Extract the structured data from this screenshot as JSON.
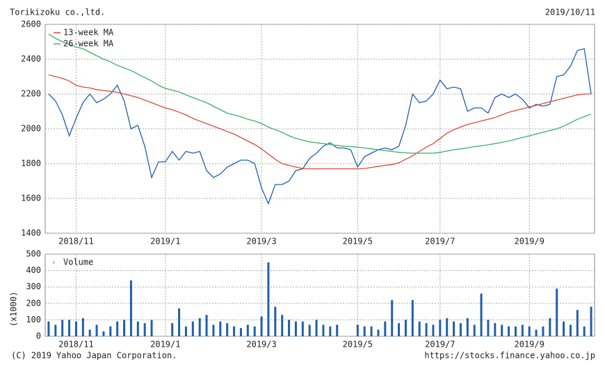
{
  "header": {
    "title": "Torikizoku co.,ltd.",
    "date": "2019/10/11"
  },
  "footer": {
    "copyright": "(C) 2019 Yahoo Japan Corporation.",
    "url": "https://stocks.finance.yahoo.co.jp"
  },
  "chart_data": [
    {
      "type": "line",
      "categories": [
        null,
        null,
        null,
        null,
        "2018/11",
        null,
        null,
        null,
        null,
        null,
        null,
        null,
        null,
        null,
        null,
        null,
        null,
        "2019/1",
        null,
        null,
        null,
        null,
        null,
        null,
        null,
        null,
        null,
        null,
        null,
        null,
        null,
        "2019/3",
        null,
        null,
        null,
        null,
        null,
        null,
        null,
        null,
        null,
        null,
        null,
        null,
        null,
        "2019/5",
        null,
        null,
        null,
        null,
        null,
        null,
        null,
        null,
        null,
        null,
        null,
        "2019/7",
        null,
        null,
        null,
        null,
        null,
        null,
        null,
        null,
        null,
        null,
        null,
        null,
        "2019/9",
        null,
        null,
        null,
        null,
        null,
        null,
        null,
        null,
        null
      ],
      "ylim": [
        1400,
        2600
      ],
      "yticks": [
        1400,
        1600,
        1800,
        2000,
        2200,
        2400,
        2600
      ],
      "grid": true,
      "legend": "top-left",
      "series": [
        {
          "color": "#1f5fae",
          "values": [
            2200,
            2160,
            2080,
            1960,
            2060,
            2150,
            2200,
            2150,
            2170,
            2200,
            2250,
            2160,
            2000,
            2020,
            1900,
            1720,
            1810,
            1810,
            1870,
            1820,
            1870,
            1860,
            1870,
            1760,
            1720,
            1740,
            1780,
            1800,
            1820,
            1820,
            1800,
            1660,
            1570,
            1680,
            1680,
            1700,
            1760,
            1770,
            1830,
            1860,
            1900,
            1920,
            1890,
            1890,
            1880,
            1780,
            1840,
            1860,
            1880,
            1890,
            1880,
            1900,
            2020,
            2200,
            2150,
            2160,
            2200,
            2280,
            2230,
            2240,
            2230,
            2100,
            2120,
            2120,
            2090,
            2180,
            2200,
            2180,
            2200,
            2170,
            2120,
            2140,
            2130,
            2140,
            2300,
            2310,
            2360,
            2450,
            2460,
            2200
          ]
        },
        {
          "name": "13-week MA",
          "color": "#d9493f",
          "values": [
            2310,
            2300,
            2290,
            2275,
            2250,
            2240,
            2235,
            2225,
            2220,
            2215,
            2210,
            2200,
            2190,
            2180,
            2165,
            2150,
            2135,
            2120,
            2110,
            2095,
            2080,
            2060,
            2045,
            2030,
            2015,
            2000,
            1985,
            1970,
            1950,
            1930,
            1910,
            1885,
            1855,
            1825,
            1800,
            1790,
            1780,
            1772,
            1770,
            1770,
            1770,
            1770,
            1770,
            1770,
            1770,
            1770,
            1772,
            1778,
            1785,
            1790,
            1795,
            1805,
            1825,
            1845,
            1870,
            1895,
            1915,
            1945,
            1975,
            1995,
            2010,
            2025,
            2035,
            2045,
            2055,
            2065,
            2080,
            2095,
            2105,
            2115,
            2125,
            2135,
            2145,
            2155,
            2165,
            2175,
            2185,
            2195,
            2200,
            2200
          ]
        },
        {
          "name": "26-week MA",
          "color": "#3dae6a",
          "values": [
            2545,
            2520,
            2500,
            2485,
            2470,
            2460,
            2440,
            2420,
            2400,
            2385,
            2365,
            2350,
            2335,
            2315,
            2295,
            2275,
            2250,
            2232,
            2222,
            2212,
            2195,
            2180,
            2165,
            2150,
            2130,
            2110,
            2090,
            2080,
            2070,
            2055,
            2045,
            2030,
            2010,
            1995,
            1980,
            1960,
            1945,
            1935,
            1925,
            1920,
            1915,
            1910,
            1905,
            1900,
            1898,
            1895,
            1890,
            1885,
            1880,
            1875,
            1870,
            1865,
            1862,
            1860,
            1860,
            1860,
            1860,
            1865,
            1872,
            1880,
            1885,
            1890,
            1898,
            1902,
            1908,
            1915,
            1922,
            1930,
            1940,
            1950,
            1960,
            1970,
            1980,
            1990,
            2000,
            2015,
            2035,
            2055,
            2070,
            2085
          ]
        }
      ]
    },
    {
      "type": "bar",
      "y_label": "(x1000)",
      "categories": [
        null,
        null,
        null,
        null,
        "2018/11",
        null,
        null,
        null,
        null,
        null,
        null,
        null,
        null,
        null,
        null,
        null,
        null,
        "2019/1",
        null,
        null,
        null,
        null,
        null,
        null,
        null,
        null,
        null,
        null,
        null,
        null,
        null,
        "2019/3",
        null,
        null,
        null,
        null,
        null,
        null,
        null,
        null,
        null,
        null,
        null,
        null,
        null,
        "2019/5",
        null,
        null,
        null,
        null,
        null,
        null,
        null,
        null,
        null,
        null,
        null,
        "2019/7",
        null,
        null,
        null,
        null,
        null,
        null,
        null,
        null,
        null,
        null,
        null,
        null,
        "2019/9",
        null,
        null,
        null,
        null,
        null,
        null,
        null,
        null,
        null
      ],
      "ylim": [
        0,
        500
      ],
      "yticks": [
        0,
        100,
        200,
        300,
        400,
        500
      ],
      "grid": true,
      "legend": "top-left",
      "series": [
        {
          "name": "Volume",
          "color": "#1f5fae",
          "values": [
            90,
            70,
            100,
            100,
            90,
            110,
            40,
            70,
            30,
            60,
            90,
            100,
            340,
            90,
            80,
            100,
            0,
            0,
            80,
            170,
            60,
            90,
            110,
            130,
            70,
            90,
            80,
            60,
            50,
            70,
            60,
            120,
            450,
            180,
            130,
            100,
            90,
            90,
            70,
            100,
            70,
            60,
            70,
            0,
            0,
            70,
            60,
            60,
            40,
            90,
            220,
            80,
            100,
            220,
            90,
            80,
            70,
            100,
            110,
            90,
            80,
            110,
            70,
            260,
            100,
            80,
            70,
            60,
            60,
            70,
            60,
            40,
            60,
            110,
            290,
            90,
            70,
            160,
            60,
            180
          ]
        }
      ]
    }
  ]
}
